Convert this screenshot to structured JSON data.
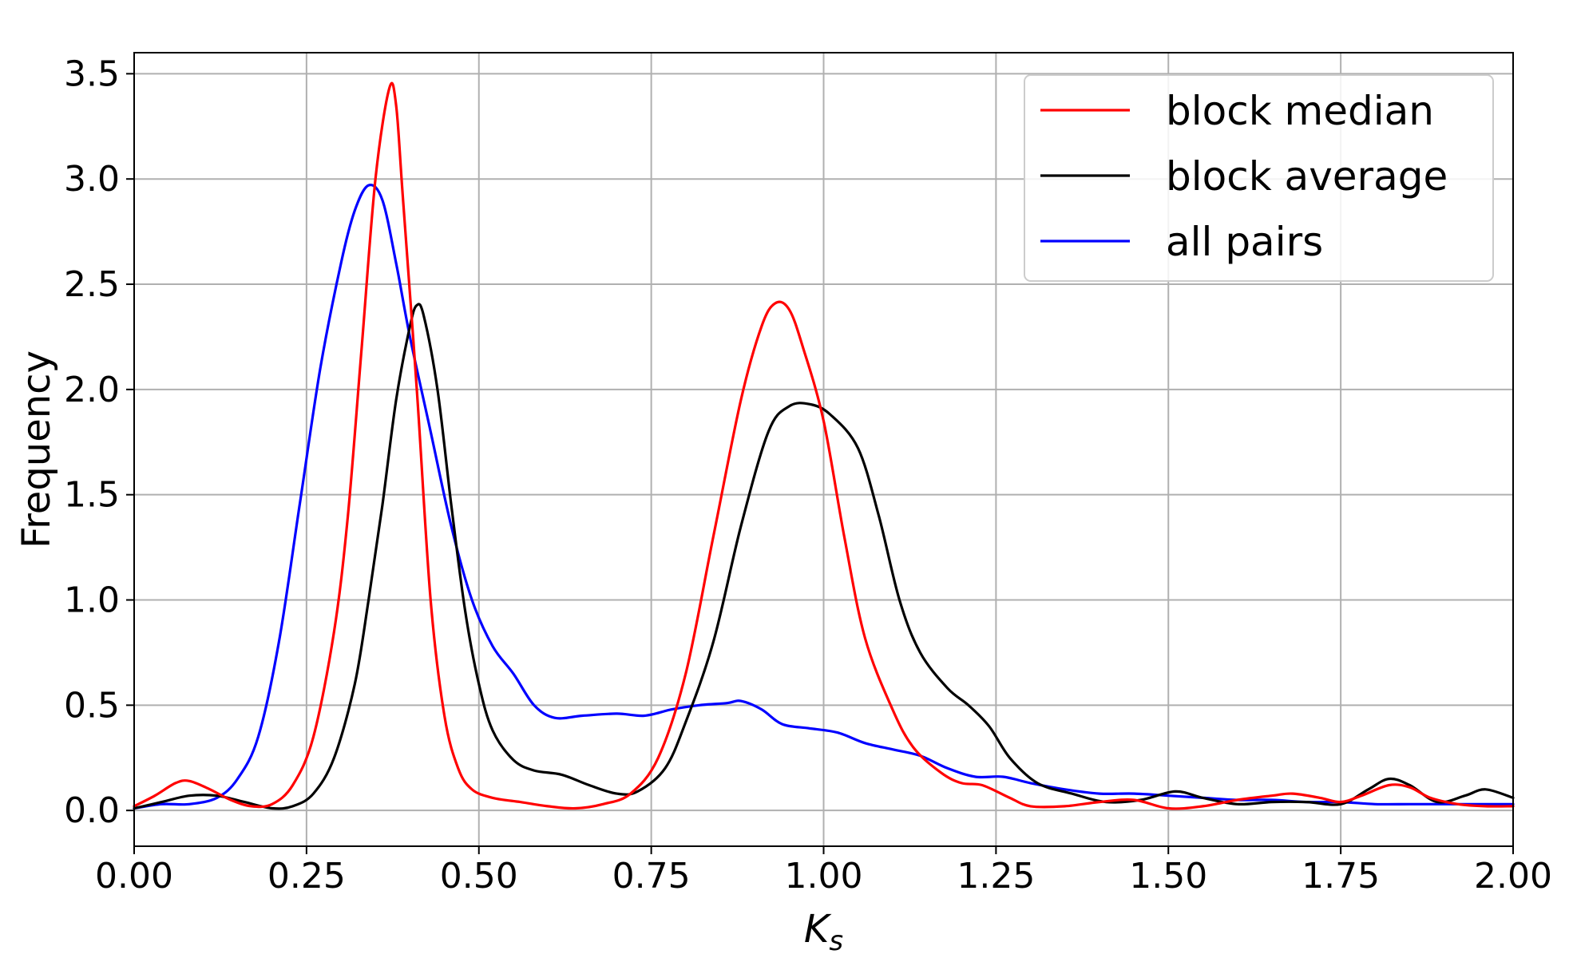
{
  "chart_data": {
    "type": "line",
    "xlabel": "K",
    "xlabel_sub": "s",
    "ylabel": "Frequency",
    "xlim": [
      0.0,
      2.0
    ],
    "ylim": [
      -0.17,
      3.6
    ],
    "xticks": [
      "0.00",
      "0.25",
      "0.50",
      "0.75",
      "1.00",
      "1.25",
      "1.50",
      "1.75",
      "2.00"
    ],
    "yticks": [
      "0.0",
      "0.5",
      "1.0",
      "1.5",
      "2.0",
      "2.5",
      "3.0",
      "3.5"
    ],
    "grid": true,
    "legend_position": "top-right",
    "series": [
      {
        "name": "block median",
        "color": "#ff0000",
        "points": [
          [
            0.0,
            0.02
          ],
          [
            0.03,
            0.07
          ],
          [
            0.06,
            0.13
          ],
          [
            0.08,
            0.14
          ],
          [
            0.11,
            0.1
          ],
          [
            0.14,
            0.05
          ],
          [
            0.17,
            0.02
          ],
          [
            0.2,
            0.03
          ],
          [
            0.23,
            0.12
          ],
          [
            0.26,
            0.35
          ],
          [
            0.29,
            0.85
          ],
          [
            0.31,
            1.4
          ],
          [
            0.33,
            2.2
          ],
          [
            0.35,
            3.0
          ],
          [
            0.37,
            3.43
          ],
          [
            0.38,
            3.35
          ],
          [
            0.39,
            2.9
          ],
          [
            0.41,
            2.0
          ],
          [
            0.43,
            1.0
          ],
          [
            0.45,
            0.45
          ],
          [
            0.47,
            0.2
          ],
          [
            0.49,
            0.1
          ],
          [
            0.52,
            0.06
          ],
          [
            0.56,
            0.04
          ],
          [
            0.6,
            0.02
          ],
          [
            0.64,
            0.01
          ],
          [
            0.68,
            0.03
          ],
          [
            0.72,
            0.08
          ],
          [
            0.76,
            0.25
          ],
          [
            0.8,
            0.65
          ],
          [
            0.84,
            1.3
          ],
          [
            0.88,
            1.95
          ],
          [
            0.91,
            2.3
          ],
          [
            0.93,
            2.41
          ],
          [
            0.95,
            2.38
          ],
          [
            0.97,
            2.2
          ],
          [
            1.0,
            1.85
          ],
          [
            1.03,
            1.3
          ],
          [
            1.06,
            0.82
          ],
          [
            1.1,
            0.48
          ],
          [
            1.13,
            0.3
          ],
          [
            1.17,
            0.18
          ],
          [
            1.2,
            0.13
          ],
          [
            1.23,
            0.12
          ],
          [
            1.27,
            0.06
          ],
          [
            1.3,
            0.02
          ],
          [
            1.35,
            0.02
          ],
          [
            1.4,
            0.04
          ],
          [
            1.45,
            0.05
          ],
          [
            1.5,
            0.01
          ],
          [
            1.55,
            0.02
          ],
          [
            1.6,
            0.05
          ],
          [
            1.65,
            0.07
          ],
          [
            1.68,
            0.08
          ],
          [
            1.72,
            0.06
          ],
          [
            1.75,
            0.04
          ],
          [
            1.78,
            0.07
          ],
          [
            1.82,
            0.12
          ],
          [
            1.85,
            0.11
          ],
          [
            1.88,
            0.06
          ],
          [
            1.92,
            0.03
          ],
          [
            1.96,
            0.02
          ],
          [
            2.0,
            0.02
          ]
        ]
      },
      {
        "name": "block average",
        "color": "#000000",
        "points": [
          [
            0.0,
            0.01
          ],
          [
            0.04,
            0.04
          ],
          [
            0.08,
            0.07
          ],
          [
            0.12,
            0.07
          ],
          [
            0.16,
            0.04
          ],
          [
            0.2,
            0.01
          ],
          [
            0.23,
            0.02
          ],
          [
            0.26,
            0.08
          ],
          [
            0.29,
            0.25
          ],
          [
            0.32,
            0.6
          ],
          [
            0.34,
            1.0
          ],
          [
            0.36,
            1.45
          ],
          [
            0.38,
            1.95
          ],
          [
            0.4,
            2.3
          ],
          [
            0.41,
            2.4
          ],
          [
            0.42,
            2.35
          ],
          [
            0.44,
            2.0
          ],
          [
            0.46,
            1.45
          ],
          [
            0.48,
            0.95
          ],
          [
            0.5,
            0.6
          ],
          [
            0.52,
            0.38
          ],
          [
            0.55,
            0.24
          ],
          [
            0.58,
            0.19
          ],
          [
            0.62,
            0.17
          ],
          [
            0.66,
            0.12
          ],
          [
            0.7,
            0.08
          ],
          [
            0.73,
            0.09
          ],
          [
            0.77,
            0.2
          ],
          [
            0.8,
            0.42
          ],
          [
            0.84,
            0.8
          ],
          [
            0.88,
            1.35
          ],
          [
            0.92,
            1.8
          ],
          [
            0.95,
            1.92
          ],
          [
            0.98,
            1.93
          ],
          [
            1.01,
            1.88
          ],
          [
            1.05,
            1.72
          ],
          [
            1.08,
            1.4
          ],
          [
            1.11,
            1.0
          ],
          [
            1.14,
            0.75
          ],
          [
            1.18,
            0.58
          ],
          [
            1.21,
            0.5
          ],
          [
            1.24,
            0.4
          ],
          [
            1.27,
            0.25
          ],
          [
            1.31,
            0.13
          ],
          [
            1.36,
            0.08
          ],
          [
            1.41,
            0.04
          ],
          [
            1.46,
            0.05
          ],
          [
            1.51,
            0.09
          ],
          [
            1.55,
            0.06
          ],
          [
            1.6,
            0.03
          ],
          [
            1.65,
            0.04
          ],
          [
            1.7,
            0.04
          ],
          [
            1.75,
            0.03
          ],
          [
            1.79,
            0.1
          ],
          [
            1.82,
            0.15
          ],
          [
            1.85,
            0.12
          ],
          [
            1.89,
            0.04
          ],
          [
            1.93,
            0.07
          ],
          [
            1.96,
            0.1
          ],
          [
            2.0,
            0.06
          ]
        ]
      },
      {
        "name": "all pairs",
        "color": "#0000ff",
        "points": [
          [
            0.0,
            0.01
          ],
          [
            0.04,
            0.03
          ],
          [
            0.08,
            0.03
          ],
          [
            0.12,
            0.06
          ],
          [
            0.15,
            0.15
          ],
          [
            0.18,
            0.35
          ],
          [
            0.21,
            0.8
          ],
          [
            0.24,
            1.45
          ],
          [
            0.27,
            2.1
          ],
          [
            0.3,
            2.6
          ],
          [
            0.32,
            2.85
          ],
          [
            0.34,
            2.97
          ],
          [
            0.36,
            2.9
          ],
          [
            0.38,
            2.6
          ],
          [
            0.4,
            2.25
          ],
          [
            0.43,
            1.8
          ],
          [
            0.46,
            1.35
          ],
          [
            0.49,
            1.0
          ],
          [
            0.52,
            0.78
          ],
          [
            0.55,
            0.65
          ],
          [
            0.58,
            0.5
          ],
          [
            0.61,
            0.44
          ],
          [
            0.65,
            0.45
          ],
          [
            0.7,
            0.46
          ],
          [
            0.74,
            0.45
          ],
          [
            0.78,
            0.48
          ],
          [
            0.82,
            0.5
          ],
          [
            0.86,
            0.51
          ],
          [
            0.88,
            0.52
          ],
          [
            0.91,
            0.48
          ],
          [
            0.94,
            0.41
          ],
          [
            0.98,
            0.39
          ],
          [
            1.02,
            0.37
          ],
          [
            1.06,
            0.32
          ],
          [
            1.1,
            0.29
          ],
          [
            1.14,
            0.26
          ],
          [
            1.18,
            0.2
          ],
          [
            1.22,
            0.16
          ],
          [
            1.26,
            0.16
          ],
          [
            1.3,
            0.13
          ],
          [
            1.35,
            0.1
          ],
          [
            1.4,
            0.08
          ],
          [
            1.45,
            0.08
          ],
          [
            1.5,
            0.07
          ],
          [
            1.55,
            0.06
          ],
          [
            1.6,
            0.05
          ],
          [
            1.65,
            0.05
          ],
          [
            1.7,
            0.04
          ],
          [
            1.75,
            0.04
          ],
          [
            1.8,
            0.03
          ],
          [
            1.85,
            0.03
          ],
          [
            1.9,
            0.03
          ],
          [
            1.95,
            0.03
          ],
          [
            2.0,
            0.03
          ]
        ]
      }
    ]
  }
}
